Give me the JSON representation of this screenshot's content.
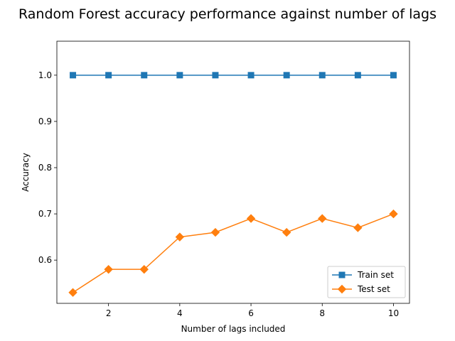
{
  "chart_data": {
    "type": "line",
    "title": "Random Forest accuracy performance against number of lags",
    "xlabel": "Number of lags included",
    "ylabel": "Accuracy",
    "x": [
      1,
      2,
      3,
      4,
      5,
      6,
      7,
      8,
      9,
      10
    ],
    "xlim": [
      0.55,
      10.45
    ],
    "ylim": [
      0.5065,
      1.0735
    ],
    "xticks": [
      2,
      4,
      6,
      8,
      10
    ],
    "yticks": [
      0.6,
      0.7,
      0.8,
      0.9,
      1.0
    ],
    "xtick_labels": [
      "2",
      "4",
      "6",
      "8",
      "10"
    ],
    "ytick_labels": [
      "0.6",
      "0.7",
      "0.8",
      "0.9",
      "1.0"
    ],
    "grid": false,
    "legend_position": "lower-right",
    "series": [
      {
        "name": "Train set",
        "values": [
          1.0,
          1.0,
          1.0,
          1.0,
          1.0,
          1.0,
          1.0,
          1.0,
          1.0,
          1.0
        ],
        "color": "#1f77b4",
        "marker": "square"
      },
      {
        "name": "Test set",
        "values": [
          0.53,
          0.58,
          0.58,
          0.65,
          0.66,
          0.69,
          0.66,
          0.69,
          0.67,
          0.7
        ],
        "color": "#ff7f0e",
        "marker": "diamond"
      }
    ]
  }
}
